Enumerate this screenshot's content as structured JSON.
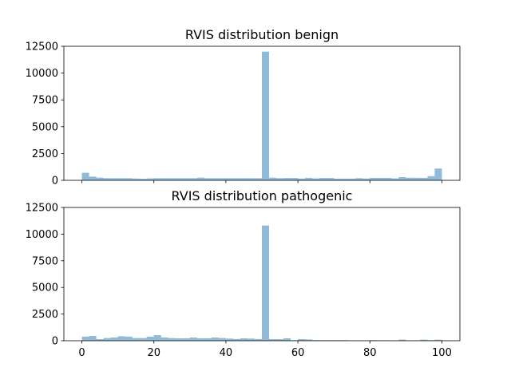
{
  "chart_data": [
    {
      "type": "bar",
      "title": "RVIS distribution benign",
      "xlabel": "",
      "ylabel": "",
      "xlim": [
        -5,
        105
      ],
      "ylim": [
        0,
        12500
      ],
      "grid": false,
      "bar_color": "#1f77b4",
      "bar_alpha": 0.5,
      "xticks": [
        0,
        20,
        40,
        60,
        80,
        100
      ],
      "xtick_labels_shown": false,
      "yticks": [
        0,
        2500,
        5000,
        7500,
        10000,
        12500
      ],
      "ytick_labels": [
        "0",
        "2500",
        "5000",
        "7500",
        "10000",
        "12500"
      ],
      "bin_width": 2,
      "bin_starts": [
        0,
        2,
        4,
        6,
        8,
        10,
        12,
        14,
        16,
        18,
        20,
        22,
        24,
        26,
        28,
        30,
        32,
        34,
        36,
        38,
        40,
        42,
        44,
        46,
        48,
        50,
        52,
        54,
        56,
        58,
        60,
        62,
        64,
        66,
        68,
        70,
        72,
        74,
        76,
        78,
        80,
        82,
        84,
        86,
        88,
        90,
        92,
        94,
        96,
        98
      ],
      "values": [
        700,
        350,
        250,
        200,
        200,
        200,
        200,
        170,
        150,
        180,
        200,
        200,
        200,
        200,
        200,
        200,
        250,
        200,
        200,
        200,
        200,
        200,
        200,
        200,
        200,
        12000,
        250,
        200,
        220,
        220,
        170,
        230,
        180,
        220,
        220,
        160,
        160,
        160,
        200,
        170,
        230,
        230,
        230,
        180,
        300,
        240,
        240,
        230,
        390,
        1100
      ]
    },
    {
      "type": "bar",
      "title": "RVIS distribution pathogenic",
      "xlabel": "",
      "ylabel": "",
      "xlim": [
        -5,
        105
      ],
      "ylim": [
        0,
        12500
      ],
      "grid": false,
      "bar_color": "#1f77b4",
      "bar_alpha": 0.5,
      "xticks": [
        0,
        20,
        40,
        60,
        80,
        100
      ],
      "xtick_labels": [
        "0",
        "20",
        "40",
        "60",
        "80",
        "100"
      ],
      "yticks": [
        0,
        2500,
        5000,
        7500,
        10000,
        12500
      ],
      "ytick_labels": [
        "0",
        "2500",
        "5000",
        "7500",
        "10000",
        "12500"
      ],
      "bin_width": 2,
      "bin_starts": [
        0,
        2,
        4,
        6,
        8,
        10,
        12,
        14,
        16,
        18,
        20,
        22,
        24,
        26,
        28,
        30,
        32,
        34,
        36,
        38,
        40,
        42,
        44,
        46,
        48,
        50,
        52,
        54,
        56,
        58,
        60,
        62,
        64,
        66,
        68,
        70,
        72,
        74,
        76,
        78,
        80,
        82,
        84,
        86,
        88,
        90,
        92,
        94,
        96,
        98
      ],
      "values": [
        380,
        450,
        150,
        250,
        300,
        420,
        380,
        250,
        250,
        380,
        520,
        300,
        250,
        220,
        230,
        300,
        230,
        230,
        300,
        250,
        200,
        160,
        230,
        200,
        160,
        10800,
        150,
        150,
        230,
        50,
        150,
        120,
        60,
        50,
        50,
        50,
        50,
        30,
        20,
        30,
        50,
        40,
        40,
        20,
        100,
        30,
        40,
        100,
        50,
        100
      ]
    }
  ]
}
